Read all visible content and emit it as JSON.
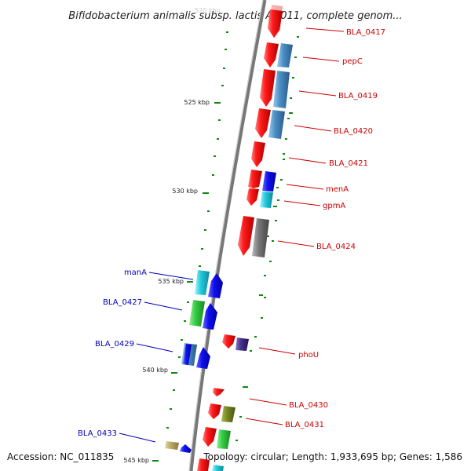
{
  "title": "Bifidobacterium animalis subsp. lactis AD011, complete genom...",
  "accession": "Accession: NC_011835",
  "summary": "Topology: circular; Length: 1,933,695 bp; Genes: 1,586",
  "colors": {
    "red": "#ff1a1a",
    "steel": "#4a8fc4",
    "blue": "#1010ee",
    "cyan": "#22ccdd",
    "green": "#33cc44",
    "olive": "#778822",
    "gray": "#777777",
    "khaki": "#bbaa66",
    "purple": "#443388",
    "label_red": "#cc0000",
    "label_blue": "#0000bb",
    "tick": "#118811"
  },
  "ruler": [
    {
      "label": "525 kbp"
    },
    {
      "label": "530 kbp"
    },
    {
      "label": "535 kbp"
    },
    {
      "label": "540 kbp"
    },
    {
      "label": "545 kbp"
    },
    {
      "label": "520 kbp"
    }
  ],
  "genes_right": [
    {
      "label": "BLA_0417"
    },
    {
      "label": "pepC"
    },
    {
      "label": "BLA_0419"
    },
    {
      "label": "BLA_0420"
    },
    {
      "label": "BLA_0421"
    },
    {
      "label": "menA"
    },
    {
      "label": "gpmA"
    },
    {
      "label": "BLA_0424"
    },
    {
      "label": "phoU"
    },
    {
      "label": "BLA_0430"
    },
    {
      "label": "BLA_0431"
    }
  ],
  "genes_left": [
    {
      "label": "manA"
    },
    {
      "label": "BLA_0427"
    },
    {
      "label": "BLA_0429"
    },
    {
      "label": "BLA_0433"
    }
  ]
}
